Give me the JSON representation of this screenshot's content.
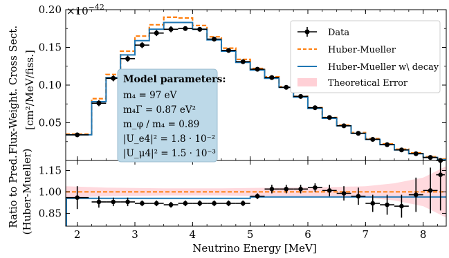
{
  "chart_data": [
    {
      "type": "line",
      "panel": "top",
      "xlim": [
        1.8,
        8.4
      ],
      "ylim": [
        0.0,
        0.2
      ],
      "yscale_label": "×10",
      "yscale_exp": "−42",
      "ylabel": "Flux-Weight. Cross Sect.",
      "ylabel_unit": "[cm²/MeV/fiss.]",
      "yticks": [
        0.05,
        0.1,
        0.15,
        0.2
      ],
      "ytick_labels": [
        "0.05",
        "0.10",
        "0.15",
        "0.20"
      ],
      "bin_edges": [
        1.8,
        2.25,
        2.5,
        2.75,
        3.0,
        3.25,
        3.5,
        3.75,
        4.0,
        4.25,
        4.5,
        4.75,
        5.0,
        5.25,
        5.5,
        5.75,
        6.0,
        6.25,
        6.5,
        6.75,
        7.0,
        7.25,
        7.5,
        7.75,
        8.0,
        8.25,
        8.4
      ],
      "series": [
        {
          "name": "Data",
          "style": "errorbar",
          "color": "#000000",
          "x": [
            2.0,
            2.375,
            2.625,
            2.875,
            3.125,
            3.375,
            3.625,
            3.875,
            4.125,
            4.375,
            4.625,
            4.875,
            5.125,
            5.375,
            5.625,
            5.875,
            6.125,
            6.375,
            6.625,
            6.875,
            7.125,
            7.375,
            7.625,
            7.875,
            8.125,
            8.3
          ],
          "y": [
            0.034,
            0.076,
            0.109,
            0.135,
            0.153,
            0.169,
            0.174,
            0.175,
            0.174,
            0.161,
            0.146,
            0.131,
            0.121,
            0.11,
            0.097,
            0.085,
            0.07,
            0.057,
            0.046,
            0.036,
            0.028,
            0.021,
            0.014,
            0.009,
            0.004,
            0.0
          ],
          "yerr": [
            0.003,
            0.004,
            0.004,
            0.004,
            0.004,
            0.004,
            0.004,
            0.003,
            0.003,
            0.003,
            0.003,
            0.003,
            0.003,
            0.003,
            0.003,
            0.003,
            0.003,
            0.002,
            0.002,
            0.002,
            0.002,
            0.002,
            0.002,
            0.002,
            0.002,
            0.002
          ],
          "xerr": [
            0.2,
            0.125,
            0.125,
            0.125,
            0.125,
            0.125,
            0.125,
            0.125,
            0.125,
            0.125,
            0.125,
            0.125,
            0.125,
            0.125,
            0.125,
            0.125,
            0.125,
            0.125,
            0.125,
            0.125,
            0.125,
            0.125,
            0.125,
            0.125,
            0.125,
            0.075
          ]
        },
        {
          "name": "Huber-Mueller",
          "style": "step-dashed",
          "color": "#ff7f0e",
          "y": [
            0.035,
            0.082,
            0.114,
            0.145,
            0.165,
            0.18,
            0.19,
            0.189,
            0.179,
            0.164,
            0.149,
            0.134,
            0.122,
            0.111,
            0.098,
            0.085,
            0.07,
            0.057,
            0.047,
            0.037,
            0.029,
            0.022,
            0.015,
            0.01,
            0.005,
            0.002
          ]
        },
        {
          "name": "Huber-Mueller w\\ decay",
          "style": "step",
          "color": "#1f77b4",
          "y": [
            0.034,
            0.078,
            0.11,
            0.14,
            0.159,
            0.174,
            0.183,
            0.183,
            0.174,
            0.16,
            0.145,
            0.13,
            0.12,
            0.109,
            0.097,
            0.084,
            0.069,
            0.056,
            0.046,
            0.036,
            0.028,
            0.021,
            0.014,
            0.009,
            0.004,
            0.001
          ]
        },
        {
          "name": "Theoretical Error",
          "style": "band",
          "color": "#ffc0c8"
        }
      ],
      "legend_position": "top-right",
      "annotation": {
        "title": "Model parameters:",
        "lines": [
          "m₄ = 97 eV",
          "m₄Γ = 0.87 eV²",
          "m_φ / m₄ = 0.89",
          "|U_e4|² = 1.8 · 10⁻²",
          "|U_μ4|² = 1.5 · 10⁻³"
        ]
      }
    },
    {
      "type": "line",
      "panel": "bottom",
      "xlim": [
        1.8,
        8.4
      ],
      "ylim": [
        0.76,
        1.22
      ],
      "xlabel": "Neutrino Energy [MeV]",
      "ylabel": "Ratio to Pred.",
      "ylabel_sub": "(Huber-Mueller)",
      "xticks": [
        2,
        3,
        4,
        5,
        6,
        7,
        8
      ],
      "xtick_labels": [
        "2",
        "3",
        "4",
        "5",
        "6",
        "7",
        "8"
      ],
      "yticks": [
        0.85,
        1.0,
        1.15
      ],
      "ytick_labels": [
        "0.85",
        "1.00",
        "1.15"
      ],
      "reference_line": 1.0,
      "decay_ratio_before_5": 0.955,
      "decay_ratio_after_5": 0.965,
      "decay_ratio_x_split": 5.0,
      "data_ratio": {
        "x": [
          2.0,
          2.375,
          2.625,
          2.875,
          3.125,
          3.375,
          3.625,
          3.875,
          4.125,
          4.375,
          4.625,
          4.875,
          5.125,
          5.375,
          5.625,
          5.875,
          6.125,
          6.375,
          6.625,
          6.875,
          7.125,
          7.375,
          7.625,
          7.875,
          8.125,
          8.3
        ],
        "y": [
          0.96,
          0.93,
          0.93,
          0.93,
          0.92,
          0.92,
          0.91,
          0.92,
          0.92,
          0.92,
          0.92,
          0.92,
          0.97,
          1.02,
          1.02,
          1.02,
          1.03,
          1.01,
          0.99,
          0.97,
          0.92,
          0.91,
          0.9,
          0.98,
          1.01,
          1.12
        ],
        "yerr": [
          0.08,
          0.04,
          0.03,
          0.03,
          0.02,
          0.02,
          0.02,
          0.02,
          0.02,
          0.02,
          0.02,
          0.02,
          0.02,
          0.03,
          0.03,
          0.03,
          0.03,
          0.04,
          0.05,
          0.06,
          0.06,
          0.07,
          0.08,
          0.12,
          0.16,
          0.25
        ],
        "xerr": [
          0.2,
          0.125,
          0.125,
          0.125,
          0.125,
          0.125,
          0.125,
          0.125,
          0.125,
          0.125,
          0.125,
          0.125,
          0.125,
          0.125,
          0.125,
          0.125,
          0.125,
          0.125,
          0.125,
          0.125,
          0.125,
          0.125,
          0.125,
          0.125,
          0.125,
          0.075
        ]
      },
      "error_band": {
        "x": [
          1.8,
          2.5,
          3.5,
          4.5,
          5.5,
          6.5,
          7.0,
          7.5,
          8.0,
          8.4
        ],
        "half_width": [
          0.04,
          0.03,
          0.025,
          0.025,
          0.03,
          0.035,
          0.04,
          0.06,
          0.1,
          0.18
        ]
      }
    }
  ]
}
